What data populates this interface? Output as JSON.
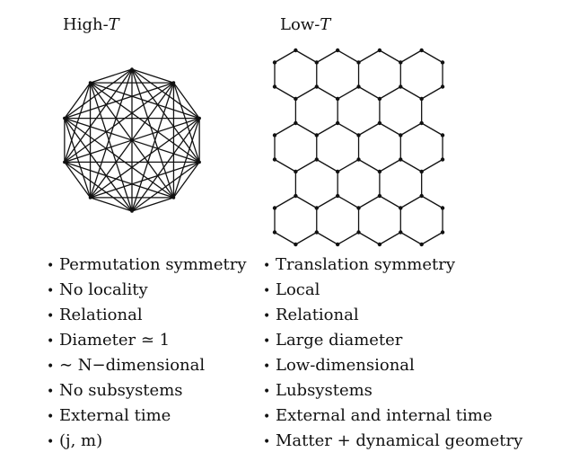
{
  "panels": {
    "high": {
      "title_prefix": "High-",
      "title_var": "T",
      "graph": {
        "type": "complete-graph",
        "vertices": 10
      },
      "properties": [
        "Permutation symmetry",
        "No locality",
        "Relational",
        "Diameter ≃ 1",
        "∼ N−dimensional",
        "No subsystems",
        "External time",
        "(j, m)"
      ]
    },
    "low": {
      "title_prefix": "Low-",
      "title_var": "T",
      "graph": {
        "type": "hexagonal-lattice",
        "rows": 5,
        "columns": 4
      },
      "properties": [
        "Translation symmetry",
        "Local",
        "Relational",
        "Large diameter",
        "Low-dimensional",
        "Lubsystems",
        "External and internal time",
        "Matter + dynamical geometry"
      ]
    }
  },
  "bullet": "•"
}
